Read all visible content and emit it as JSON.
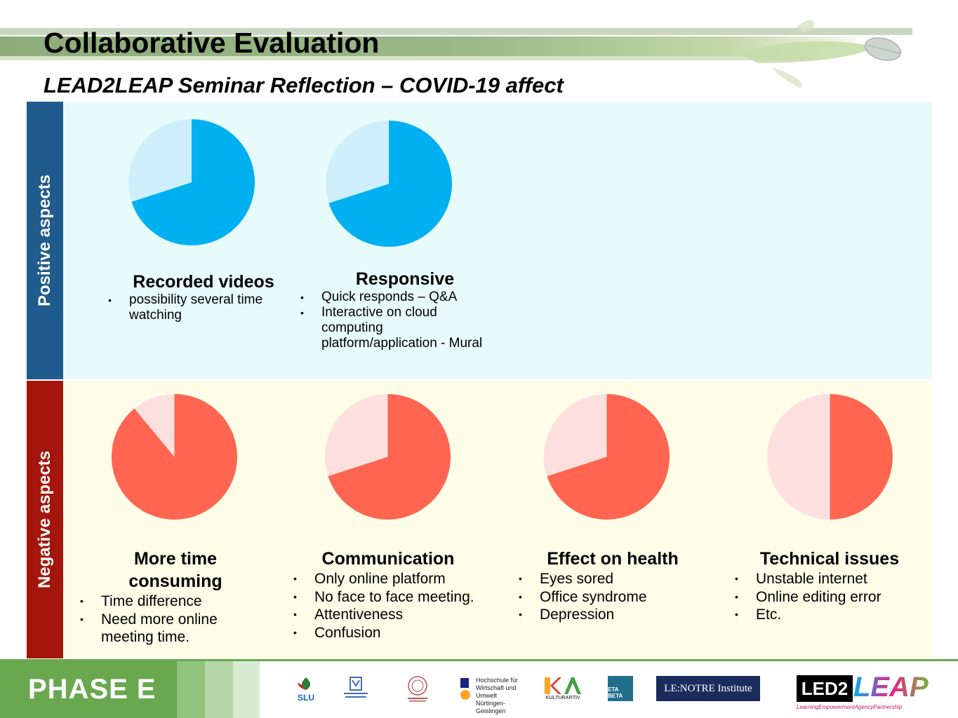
{
  "title": "Collaborative Evaluation",
  "subtitle": "LEAD2LEAP Seminar Reflection – COVID-19 affect",
  "positive": {
    "label": "Positive aspects",
    "items": [
      {
        "title": "Recorded videos",
        "bullets": [
          "possibility several time watching"
        ]
      },
      {
        "title": "Responsive",
        "bullets": [
          "Quick responds – Q&A",
          "Interactive on cloud computing platform/application - Mural"
        ]
      }
    ]
  },
  "negative": {
    "label": "Negative aspects",
    "items": [
      {
        "title": "More time consuming",
        "bullets": [
          "Time difference",
          "Need more online meeting time."
        ]
      },
      {
        "title": "Communication",
        "bullets": [
          "Only online platform",
          "No face to face meeting.",
          "Attentiveness",
          "Confusion"
        ]
      },
      {
        "title": "Effect on health",
        "bullets": [
          "Eyes sored",
          "Office syndrome",
          "Depression"
        ]
      },
      {
        "title": "Technical issues",
        "bullets": [
          "Unstable internet",
          "Online editing error",
          "Etc."
        ]
      }
    ]
  },
  "chart_data": [
    {
      "type": "pie",
      "title": "Recorded videos",
      "values": [
        70,
        30
      ],
      "colors": [
        "#00b0f0",
        "#cfeefc"
      ]
    },
    {
      "type": "pie",
      "title": "Responsive",
      "values": [
        70,
        30
      ],
      "colors": [
        "#00b0f0",
        "#cfeefc"
      ]
    },
    {
      "type": "pie",
      "title": "More time consuming",
      "values": [
        89,
        11
      ],
      "colors": [
        "#ff6550",
        "#fde0dd"
      ]
    },
    {
      "type": "pie",
      "title": "Communication",
      "values": [
        70,
        30
      ],
      "colors": [
        "#ff6550",
        "#fde0dd"
      ]
    },
    {
      "type": "pie",
      "title": "Effect on health",
      "values": [
        70,
        30
      ],
      "colors": [
        "#ff6550",
        "#fde0dd"
      ]
    },
    {
      "type": "pie",
      "title": "Technical issues",
      "values": [
        50,
        50
      ],
      "colors": [
        "#ff6550",
        "#fde0dd"
      ]
    }
  ],
  "footer": {
    "phase": "PHASE E",
    "logos": {
      "slu": "SLU",
      "hfwu": [
        "Hochschule für",
        "Wirtschaft und Umwelt",
        "Nürtingen-Geislingen"
      ],
      "kultura": "KULTURARTIV",
      "etabeta": "ETA BETA",
      "lenotre": "LE:NOTRE Institute",
      "led2": "LED2",
      "leap": "LEAP",
      "led2_tagline": "LearningEmpowermentAgencyPartnership"
    }
  },
  "colors": {
    "positive_fill": "#00b0f0",
    "positive_light": "#cfeefc",
    "negative_fill": "#ff6550",
    "negative_light": "#fde0dd",
    "positive_band": "#1f5b8c",
    "negative_band": "#a4160b",
    "footer_green": "#6aa84f"
  }
}
